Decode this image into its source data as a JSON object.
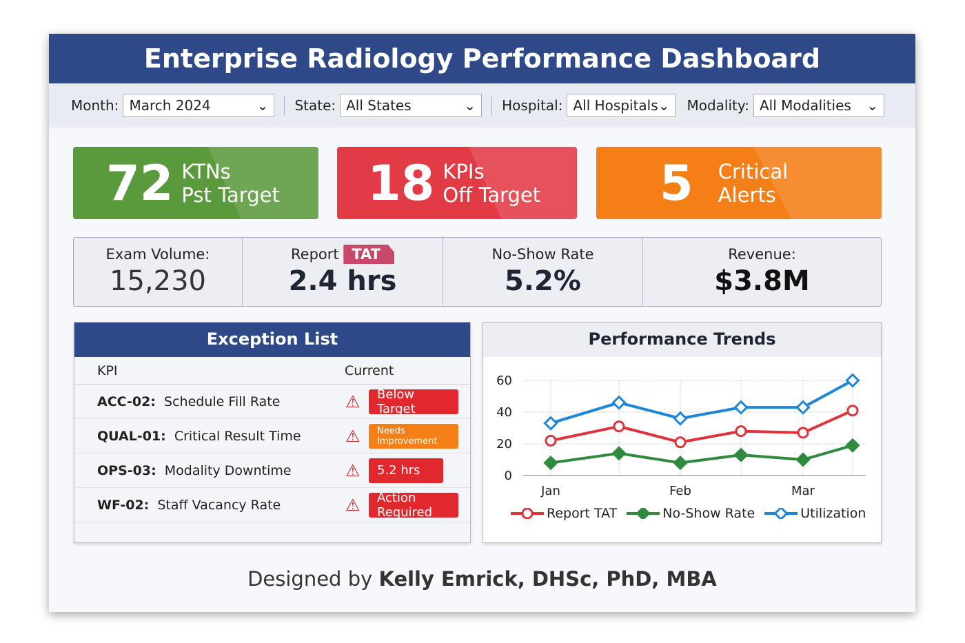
{
  "header": {
    "title": "Enterprise Radiology Performance Dashboard"
  },
  "filters": [
    {
      "label": "Month:",
      "value": "March 2024"
    },
    {
      "label": "State:",
      "value": "All States"
    },
    {
      "label": "Hospital:",
      "value": "All Hospitals"
    },
    {
      "label": "Modality:",
      "value": "All Modalities"
    }
  ],
  "cards": [
    {
      "value": "72",
      "line1": "KTNs",
      "line2": "Pst Target",
      "color": "#5b9a3c"
    },
    {
      "value": "18",
      "line1": "KPIs",
      "line2": "Off Target",
      "color": "#e23b45"
    },
    {
      "value": "5",
      "line1": "Critical",
      "line2": "Alerts",
      "color": "#f47f17"
    }
  ],
  "stats": [
    {
      "label": "Exam Volume:",
      "value": "15,230"
    },
    {
      "label": "Report",
      "tag": "TAT",
      "value": "2.4 hrs"
    },
    {
      "label": "No-Show Rate",
      "value": "5.2%"
    },
    {
      "label": "Revenue:",
      "value": "$3.8M"
    }
  ],
  "exceptions": {
    "title": "Exception List",
    "col_kpi": "KPI",
    "col_current": "Current",
    "rows": [
      {
        "code": "ACC-02:",
        "name": "Schedule Fill Rate",
        "status": "Below Target",
        "color": "#e0282e"
      },
      {
        "code": "QUAL-01:",
        "name": "Critical Result Time",
        "status": "Needs Improvement",
        "color": "#f47f17"
      },
      {
        "code": "OPS-03:",
        "name": "Modality Downtime",
        "status": "5.2 hrs",
        "color": "#e0282e"
      },
      {
        "code": "WF-02:",
        "name": "Staff Vacancy Rate",
        "status": "Action Required",
        "color": "#e0282e"
      }
    ]
  },
  "chart_data": {
    "type": "line",
    "title": "Performance Trends",
    "x_tick_labels": [
      "Jan",
      "Feb",
      "Mar"
    ],
    "x": [
      1,
      1.5,
      2,
      2.5,
      3,
      3.4
    ],
    "ylim": [
      0,
      60
    ],
    "yticks": [
      0,
      20,
      40,
      60
    ],
    "legend": "bottom",
    "series": [
      {
        "name": "Report TAT",
        "color": "#e0323a",
        "marker": "circle",
        "values": [
          22,
          31,
          21,
          28,
          27,
          41
        ]
      },
      {
        "name": "No-Show Rate",
        "color": "#2e8b3e",
        "marker": "diamond-filled",
        "values": [
          8,
          14,
          8,
          13,
          10,
          19
        ]
      },
      {
        "name": "Utilization",
        "color": "#1d86d8",
        "marker": "diamond",
        "values": [
          33,
          46,
          36,
          43,
          43,
          60
        ]
      }
    ]
  },
  "footer": {
    "prefix": "Designed by ",
    "author": "Kelly Emrick, DHSc, PhD, MBA"
  }
}
